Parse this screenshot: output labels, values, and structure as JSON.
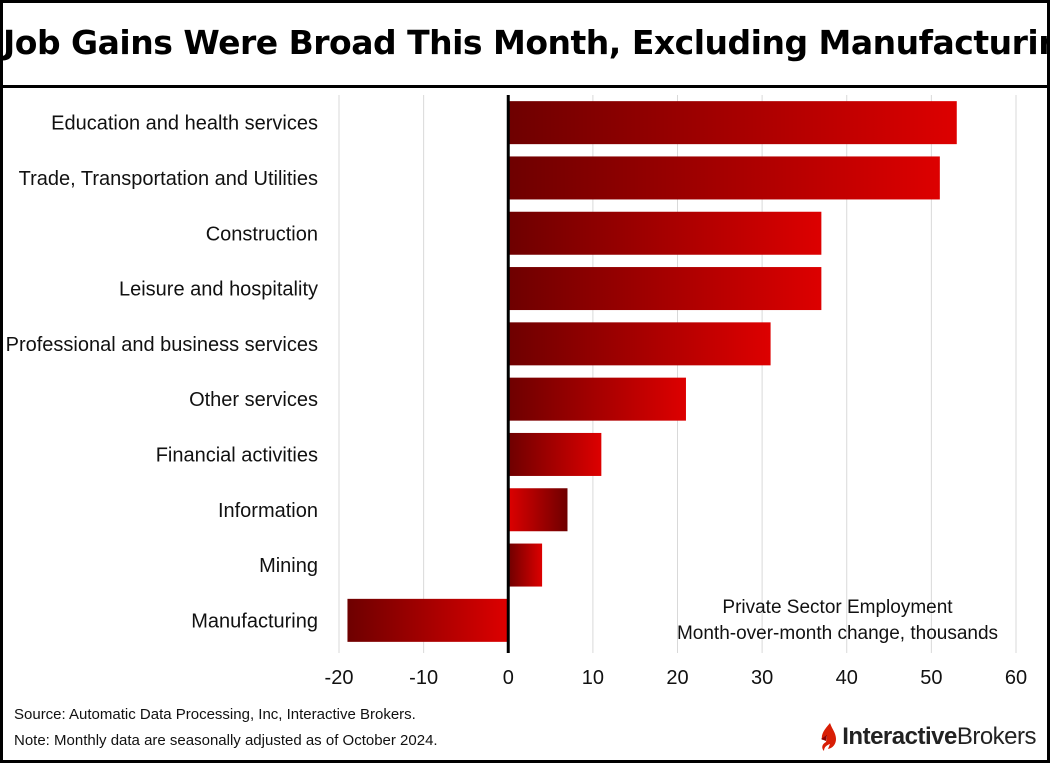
{
  "title": "Job Gains Were Broad This Month, Excluding Manufacturing",
  "annotation": {
    "line1": "Private Sector Employment",
    "line2": "Month-over-month change, thousands"
  },
  "footer": {
    "source": "Source: Automatic Data Processing, Inc, Interactive Brokers.",
    "note": "Note: Monthly data are seasonally adjusted as of October 2024."
  },
  "logo": {
    "part1": "Interactive",
    "part2": "Brokers",
    "icon": "ib-flame-icon"
  },
  "colors": {
    "bar_dark": "#6e0000",
    "bar_light": "#dd0000",
    "logo_red": "#d81e05"
  },
  "chart_data": {
    "type": "bar",
    "orientation": "horizontal",
    "categories": [
      "Education and health services",
      "Trade, Transportation and Utilities",
      "Construction",
      "Leisure and hospitality",
      "Professional and business services",
      "Other services",
      "Financial activities",
      "Information",
      "Mining",
      "Manufacturing"
    ],
    "values": [
      53,
      51,
      37,
      37,
      31,
      21,
      11,
      7,
      4,
      -19
    ],
    "xlim": [
      -20,
      60
    ],
    "xticks": [
      -20,
      -10,
      0,
      10,
      20,
      30,
      40,
      50,
      60
    ],
    "grid": true,
    "title": "Job Gains Were Broad This Month, Excluding Manufacturing"
  }
}
